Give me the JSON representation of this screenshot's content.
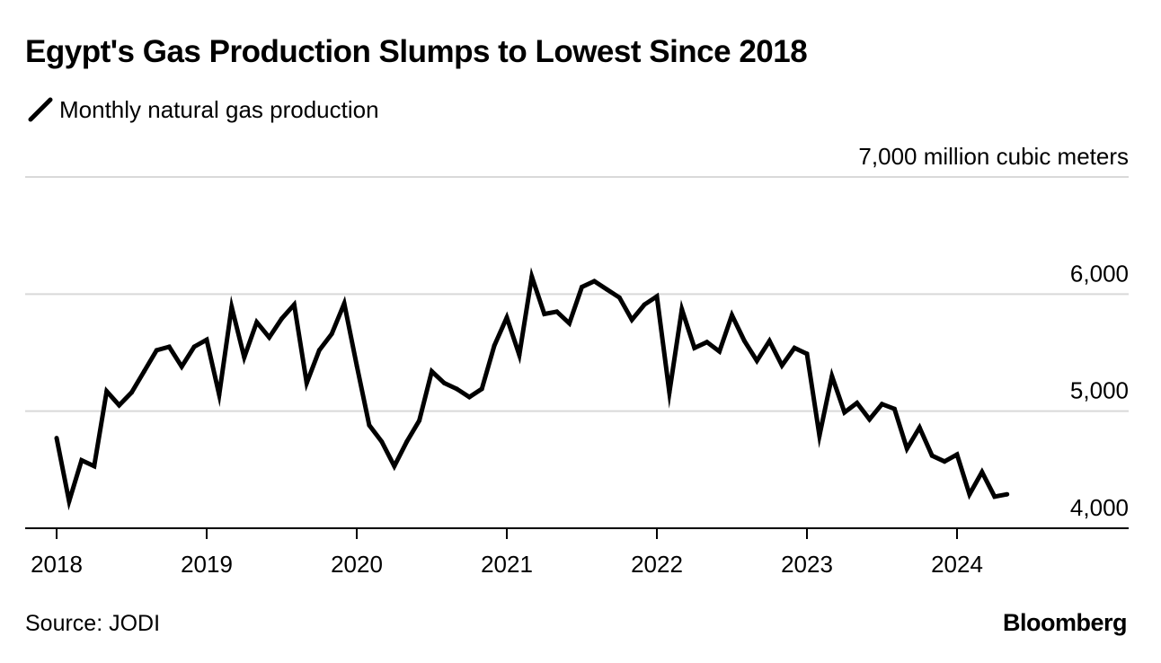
{
  "header": {
    "title": "Egypt's Gas Production Slumps to Lowest Since 2018"
  },
  "legend": {
    "label": "Monthly natural gas production",
    "icon": "diagonal-line-icon"
  },
  "footer": {
    "source": "Source: JODI",
    "brand": "Bloomberg"
  },
  "colors": {
    "line": "#000000",
    "grid": "#d9d9d9",
    "axis": "#000000",
    "background": "#ffffff"
  },
  "chart_data": {
    "type": "line",
    "title": "Egypt's Gas Production Slumps to Lowest Since 2018",
    "xlabel": "",
    "ylabel": "",
    "ylim": [
      4000,
      7000
    ],
    "grid": true,
    "legend_position": "top-left",
    "y_axis_position": "right",
    "y_ticks": [
      {
        "value": 7000,
        "label": "7,000 million cubic meters"
      },
      {
        "value": 6000,
        "label": "6,000"
      },
      {
        "value": 5000,
        "label": "5,000"
      },
      {
        "value": 4000,
        "label": "4,000"
      }
    ],
    "x_ticks": [
      "2018",
      "2019",
      "2020",
      "2021",
      "2022",
      "2023",
      "2024"
    ],
    "x": [
      "2018-01",
      "2018-02",
      "2018-03",
      "2018-04",
      "2018-05",
      "2018-06",
      "2018-07",
      "2018-08",
      "2018-09",
      "2018-10",
      "2018-11",
      "2018-12",
      "2019-01",
      "2019-02",
      "2019-03",
      "2019-04",
      "2019-05",
      "2019-06",
      "2019-07",
      "2019-08",
      "2019-09",
      "2019-10",
      "2019-11",
      "2019-12",
      "2020-01",
      "2020-02",
      "2020-03",
      "2020-04",
      "2020-05",
      "2020-06",
      "2020-07",
      "2020-08",
      "2020-09",
      "2020-10",
      "2020-11",
      "2020-12",
      "2021-01",
      "2021-02",
      "2021-03",
      "2021-04",
      "2021-05",
      "2021-06",
      "2021-07",
      "2021-08",
      "2021-09",
      "2021-10",
      "2021-11",
      "2021-12",
      "2022-01",
      "2022-02",
      "2022-03",
      "2022-04",
      "2022-05",
      "2022-06",
      "2022-07",
      "2022-08",
      "2022-09",
      "2022-10",
      "2022-11",
      "2022-12",
      "2023-01",
      "2023-02",
      "2023-03",
      "2023-04",
      "2023-05",
      "2023-06",
      "2023-07",
      "2023-08",
      "2023-09",
      "2023-10",
      "2023-11",
      "2023-12",
      "2024-01",
      "2024-02",
      "2024-03",
      "2024-04",
      "2024-05"
    ],
    "series": [
      {
        "name": "Monthly natural gas production",
        "values": [
          4770,
          4230,
          4580,
          4530,
          5170,
          5050,
          5160,
          5340,
          5520,
          5550,
          5380,
          5550,
          5610,
          5140,
          5890,
          5460,
          5760,
          5630,
          5790,
          5910,
          5240,
          5520,
          5660,
          5920,
          5390,
          4880,
          4740,
          4530,
          4740,
          4920,
          5340,
          5240,
          5190,
          5120,
          5190,
          5560,
          5800,
          5480,
          6150,
          5830,
          5850,
          5750,
          6060,
          6110,
          6040,
          5970,
          5780,
          5910,
          5980,
          5160,
          5870,
          5540,
          5590,
          5510,
          5820,
          5600,
          5430,
          5600,
          5390,
          5540,
          5490,
          4790,
          5300,
          4990,
          5070,
          4930,
          5060,
          5020,
          4680,
          4860,
          4620,
          4570,
          4630,
          4290,
          4480,
          4270,
          4290
        ]
      }
    ]
  }
}
